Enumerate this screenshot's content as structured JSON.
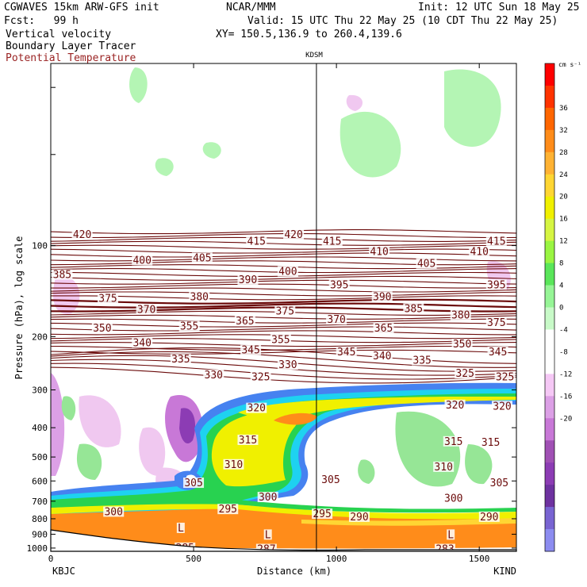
{
  "header": {
    "model": "CGWAVES 15km ARW-GFS init",
    "forecast": "Fcst:   99 h",
    "field1": "Vertical velocity",
    "field2": "Boundary Layer Tracer",
    "field3": "Potential Temperature",
    "org": "NCAR/MMM",
    "init": "Init: 12 UTC Sun 18 May 25",
    "valid": "Valid: 15 UTC Thu 22 May 25 (10 CDT Thu 22 May 25)",
    "xy": "XY= 150.5,136.9 to 260.4,139.6"
  },
  "colors": {
    "theta_contour": "#6b0a0a",
    "legend_colors": [
      "#ff0000",
      "#ff3300",
      "#ff6600",
      "#ff8c1a",
      "#ffb233",
      "#ffd633",
      "#f0f000",
      "#d6f542",
      "#9af542",
      "#5ae65a",
      "#96f596",
      "#c8fac8",
      "#ffffff",
      "#ffffff",
      "#f5c8f5",
      "#dca0e6",
      "#c878d7",
      "#a050b4",
      "#8c3cb4",
      "#6e32a0",
      "#7864d2",
      "#8c8cf0"
    ]
  },
  "chart_data": {
    "type": "cross-section",
    "station_top": "KDSM",
    "xlabel": "Distance (km)",
    "ylabel": "Pressure (hPa), log scale",
    "x_ticks": [
      "0",
      "500",
      "1000",
      "1500"
    ],
    "x_tick_values": [
      0,
      500,
      1000,
      1500
    ],
    "xlim": [
      0,
      1630
    ],
    "y_ticks": [
      "100",
      "200",
      "300",
      "400",
      "500",
      "600",
      "700",
      "800",
      "900",
      "1000"
    ],
    "y_tick_values": [
      100,
      200,
      300,
      400,
      500,
      600,
      700,
      800,
      900,
      1000
    ],
    "ylim_hpa": [
      1025,
      25
    ],
    "left_station": "KBJC",
    "right_station": "KIND",
    "vertical_line_km": 930,
    "legend_unit": "cm s⁻¹",
    "legend_labels": [
      "36",
      "32",
      "28",
      "24",
      "20",
      "16",
      "12",
      "8",
      "4",
      "0",
      "-4",
      "-8",
      "-12",
      "-16",
      "-20"
    ],
    "legend_values": [
      36,
      32,
      28,
      24,
      20,
      16,
      12,
      8,
      4,
      0,
      -4,
      -8,
      -12,
      -16,
      -20
    ],
    "theta_labels": [
      {
        "text": "420",
        "km": 110,
        "p": 92
      },
      {
        "text": "415",
        "km": 720,
        "p": 97
      },
      {
        "text": "420",
        "km": 850,
        "p": 92
      },
      {
        "text": "415",
        "km": 985,
        "p": 97
      },
      {
        "text": "415",
        "km": 1560,
        "p": 97
      },
      {
        "text": "410",
        "km": 1150,
        "p": 105
      },
      {
        "text": "410",
        "km": 1500,
        "p": 105
      },
      {
        "text": "385",
        "km": 40,
        "p": 125
      },
      {
        "text": "400",
        "km": 320,
        "p": 112
      },
      {
        "text": "405",
        "km": 530,
        "p": 110
      },
      {
        "text": "400",
        "km": 830,
        "p": 122
      },
      {
        "text": "405",
        "km": 1315,
        "p": 115
      },
      {
        "text": "390",
        "km": 690,
        "p": 130
      },
      {
        "text": "395",
        "km": 1010,
        "p": 135
      },
      {
        "text": "395",
        "km": 1560,
        "p": 135
      },
      {
        "text": "375",
        "km": 200,
        "p": 150
      },
      {
        "text": "370",
        "km": 335,
        "p": 163
      },
      {
        "text": "380",
        "km": 520,
        "p": 148
      },
      {
        "text": "390",
        "km": 1160,
        "p": 148
      },
      {
        "text": "385",
        "km": 1270,
        "p": 162
      },
      {
        "text": "380",
        "km": 1435,
        "p": 170
      },
      {
        "text": "375",
        "km": 1560,
        "p": 180
      },
      {
        "text": "375",
        "km": 820,
        "p": 165
      },
      {
        "text": "350",
        "km": 180,
        "p": 188
      },
      {
        "text": "355",
        "km": 485,
        "p": 185
      },
      {
        "text": "365",
        "km": 680,
        "p": 178
      },
      {
        "text": "370",
        "km": 1000,
        "p": 176
      },
      {
        "text": "365",
        "km": 1165,
        "p": 188
      },
      {
        "text": "340",
        "km": 320,
        "p": 210
      },
      {
        "text": "355",
        "km": 805,
        "p": 205
      },
      {
        "text": "350",
        "km": 1440,
        "p": 212
      },
      {
        "text": "335",
        "km": 455,
        "p": 238
      },
      {
        "text": "345",
        "km": 700,
        "p": 222
      },
      {
        "text": "345",
        "km": 1035,
        "p": 225
      },
      {
        "text": "340",
        "km": 1160,
        "p": 232
      },
      {
        "text": "345",
        "km": 1565,
        "p": 225
      },
      {
        "text": "330",
        "km": 570,
        "p": 268
      },
      {
        "text": "330",
        "km": 830,
        "p": 248
      },
      {
        "text": "335",
        "km": 1300,
        "p": 240
      },
      {
        "text": "325",
        "km": 735,
        "p": 272
      },
      {
        "text": "325",
        "km": 1450,
        "p": 265
      },
      {
        "text": "325",
        "km": 1590,
        "p": 272
      },
      {
        "text": "320",
        "km": 720,
        "p": 345
      },
      {
        "text": "320",
        "km": 1415,
        "p": 337
      },
      {
        "text": "320",
        "km": 1580,
        "p": 340
      },
      {
        "text": "315",
        "km": 690,
        "p": 440
      },
      {
        "text": "315",
        "km": 1410,
        "p": 445
      },
      {
        "text": "315",
        "km": 1540,
        "p": 448
      },
      {
        "text": "310",
        "km": 640,
        "p": 530
      },
      {
        "text": "310",
        "km": 1375,
        "p": 540
      },
      {
        "text": "305",
        "km": 500,
        "p": 610
      },
      {
        "text": "305",
        "km": 980,
        "p": 595
      },
      {
        "text": "305",
        "km": 1570,
        "p": 610
      },
      {
        "text": "300",
        "km": 760,
        "p": 680
      },
      {
        "text": "300",
        "km": 1410,
        "p": 685
      },
      {
        "text": "300",
        "km": 220,
        "p": 760
      },
      {
        "text": "295",
        "km": 620,
        "p": 745
      },
      {
        "text": "295",
        "km": 950,
        "p": 772
      },
      {
        "text": "290",
        "km": 1080,
        "p": 790
      },
      {
        "text": "290",
        "km": 1535,
        "p": 790
      },
      {
        "text": "L",
        "km": 455,
        "p": 860
      },
      {
        "text": "L",
        "km": 760,
        "p": 905
      },
      {
        "text": "L",
        "km": 1400,
        "p": 905
      },
      {
        "text": "285",
        "km": 470,
        "p": 1000
      },
      {
        "text": "287",
        "km": 755,
        "p": 1010
      },
      {
        "text": "283",
        "km": 1380,
        "p": 1010
      }
    ]
  }
}
